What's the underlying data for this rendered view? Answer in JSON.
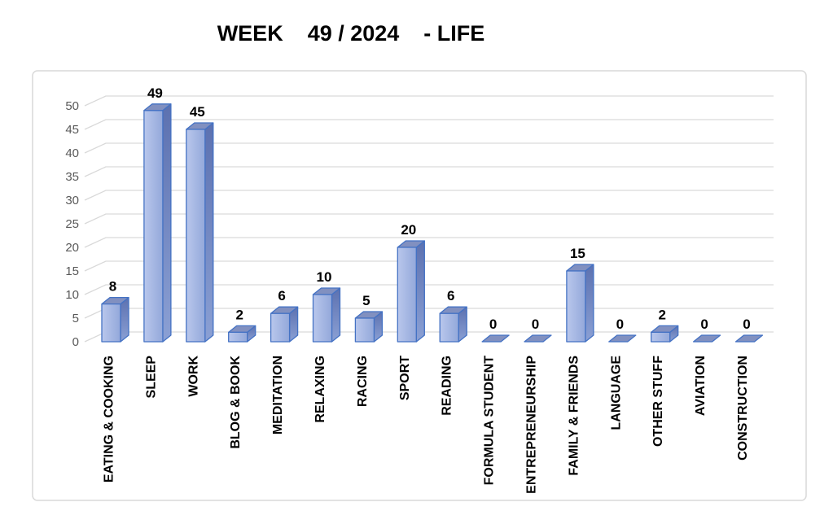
{
  "title": "WEEK    49 / 2024    - LIFE",
  "chart_data": {
    "type": "bar",
    "style": "3d",
    "title": "WEEK 49 / 2024 - LIFE",
    "categories": [
      "EATING & COOKING",
      "SLEEP",
      "WORK",
      "BLOG & BOOK",
      "MEDITATION",
      "RELAXING",
      "RACING",
      "SPORT",
      "READING",
      "FORMULA STUDENT",
      "ENTREPRENEURSHIP",
      "FAMILY & FRIENDS",
      "LANGUAGE",
      "OTHER STUFF",
      "AVIATION",
      "CONSTRUCTION"
    ],
    "values": [
      8,
      49,
      45,
      2,
      6,
      10,
      5,
      20,
      6,
      0,
      0,
      15,
      0,
      2,
      0,
      0
    ],
    "yticks": [
      0,
      5,
      10,
      15,
      20,
      25,
      30,
      35,
      40,
      45,
      50
    ],
    "ylim": [
      0,
      50
    ],
    "xlabel": "",
    "ylabel": "",
    "grid": true,
    "legend": false,
    "data_labels": true,
    "colors": {
      "bar_front_light": "#b9c7ec",
      "bar_front_dark": "#93a8da",
      "bar_top": "#8190c0",
      "bar_side_top": "#5c71b0",
      "bar_side_bottom": "#8ba0d4",
      "bar_border": "#4472c4",
      "gridline": "#d9d9d9",
      "axis_text": "#595959",
      "label_text": "#000000",
      "frame_border": "#d9d9d9",
      "background": "#ffffff"
    }
  }
}
